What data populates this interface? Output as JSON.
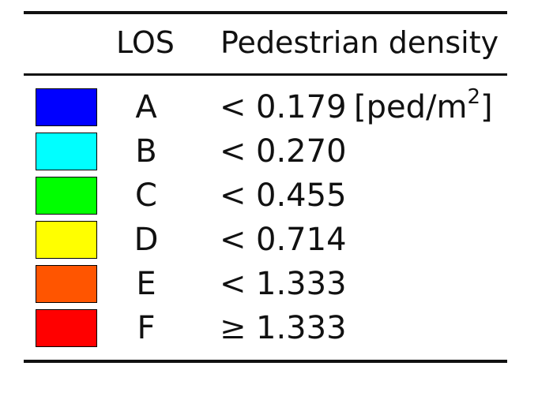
{
  "table": {
    "header": {
      "level_label": "LOS",
      "density_label": "Pedestrian density"
    },
    "unit": {
      "prefix": "[ped/m",
      "exponent": "2",
      "suffix": "]"
    },
    "rows": [
      {
        "level": "A",
        "operator": "<",
        "value": "0.179",
        "color": "#0000ff"
      },
      {
        "level": "B",
        "operator": "<",
        "value": "0.270",
        "color": "#00ffff"
      },
      {
        "level": "C",
        "operator": "<",
        "value": "0.455",
        "color": "#00ff00"
      },
      {
        "level": "D",
        "operator": "<",
        "value": "0.714",
        "color": "#ffff00"
      },
      {
        "level": "E",
        "operator": "<",
        "value": "1.333",
        "color": "#ff5500"
      },
      {
        "level": "F",
        "operator": "≥",
        "value": "1.333",
        "color": "#ff0000"
      }
    ]
  }
}
